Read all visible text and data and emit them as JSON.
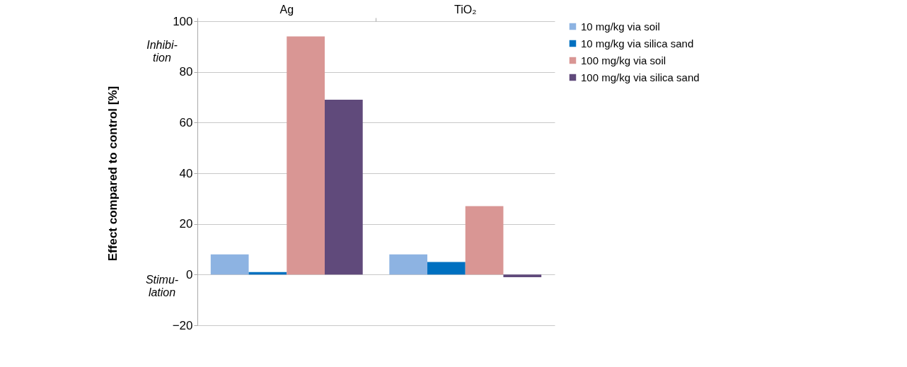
{
  "chart_data": {
    "type": "bar",
    "ylabel": "Effect compared to control [%]",
    "categories": [
      "Ag",
      "TiO₂"
    ],
    "series": [
      {
        "name": "10 mg/kg via soil",
        "color": "#8db3e2",
        "values": [
          8,
          8
        ]
      },
      {
        "name": "10 mg/kg via silica sand",
        "color": "#0070c0",
        "values": [
          1,
          5
        ]
      },
      {
        "name": "100 mg/kg via soil",
        "color": "#d99694",
        "values": [
          94,
          27
        ]
      },
      {
        "name": "100 mg/kg via silica sand",
        "color": "#604a7b",
        "values": [
          69,
          -1
        ]
      }
    ],
    "ylim": [
      -20,
      100
    ],
    "yticks": [
      -20,
      0,
      20,
      40,
      60,
      80,
      100
    ],
    "annotations": [
      "Inhibi-\ntion",
      "Stimu-\nlation"
    ],
    "grid": "y",
    "legend": "right"
  }
}
